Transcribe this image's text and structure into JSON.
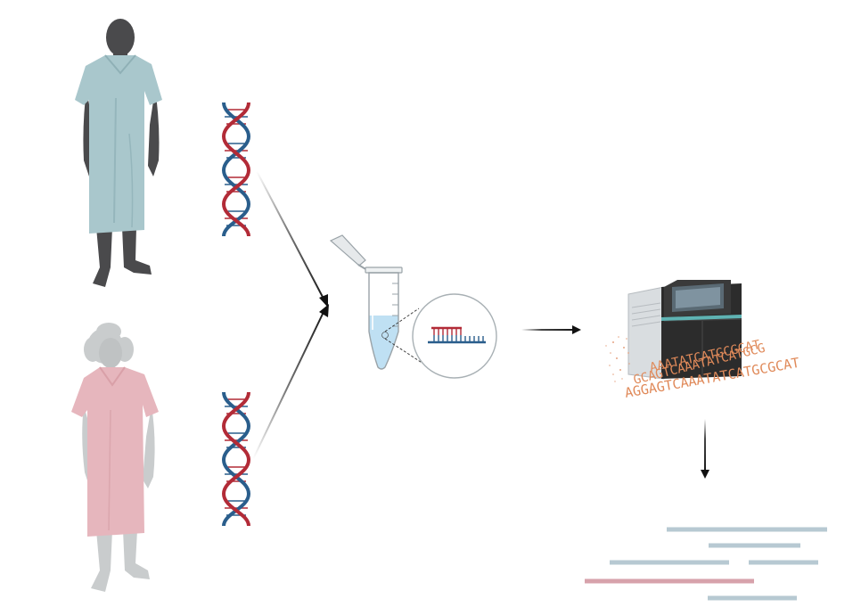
{
  "figure": {
    "colors": {
      "background": "#ffffff",
      "patient_male_skin": "#4a4a4c",
      "patient_male_gown": "#a9c7cc",
      "patient_female_silhouette": "#c9cccd",
      "patient_female_gown": "#e6b6bd",
      "dna_red": "#b22b37",
      "dna_blue": "#2a5e8c",
      "tube_liquid": "#bfe0f3",
      "sequencer_body": "#2c2c2c",
      "sequencer_panel": "#d9dde0",
      "sequence_text": "#e08a5a",
      "read_blue": "#b7c9d2",
      "read_red": "#d7a2ab",
      "arrow": "#1a1a1a"
    },
    "icons": {
      "patient_1": "male-patient-icon",
      "patient_2": "female-patient-icon",
      "dna_1": "dna-helix-icon",
      "dna_2": "dna-helix-icon",
      "tube": "microcentrifuge-tube-icon",
      "zoom": "magnifier-inset-icon",
      "probe": "hybridization-probe-icon",
      "sequencer": "sequencer-machine-icon"
    },
    "sequence_lines": [
      "AAATATCATGCGCAT",
      "GCAGTCAAATATCATGCG",
      "AGGAGTCAAATATCATGCGCAT"
    ],
    "read_rows": [
      {
        "color": "blue"
      },
      {
        "color": "blue"
      },
      {
        "color": "blue"
      },
      {
        "color": "red"
      },
      {
        "color": "blue"
      }
    ]
  }
}
